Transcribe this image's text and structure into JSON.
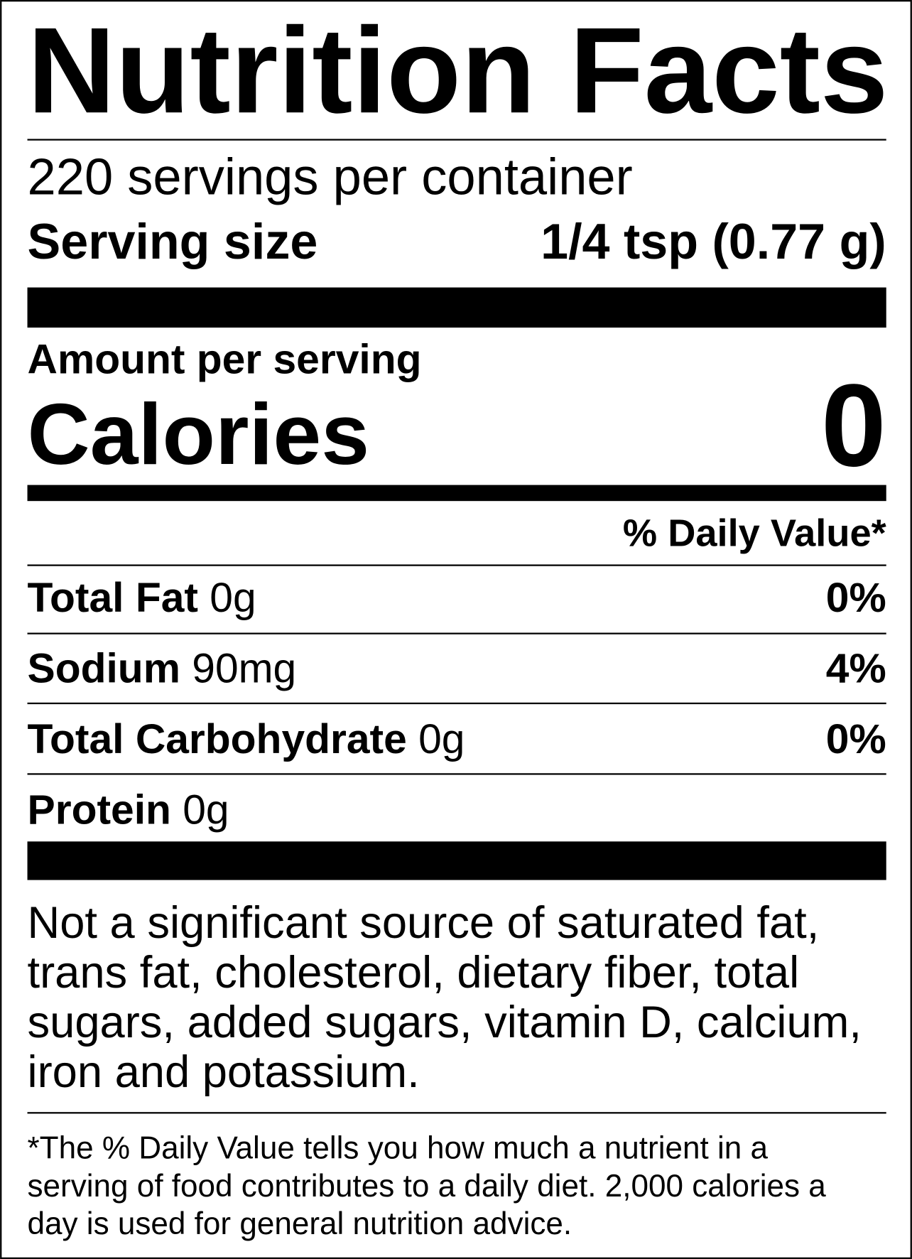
{
  "title": "Nutrition Facts",
  "servings_per_container": "220 servings per container",
  "serving_size": {
    "label": "Serving size",
    "value": "1/4 tsp (0.77 g)"
  },
  "amount_per_serving": "Amount per serving",
  "calories": {
    "label": "Calories",
    "value": "0"
  },
  "daily_value_header": "% Daily Value*",
  "nutrients": [
    {
      "name": "Total Fat",
      "amount": "0g",
      "daily_value": "0%"
    },
    {
      "name": "Sodium",
      "amount": "90mg",
      "daily_value": "4%"
    },
    {
      "name": "Total Carbohydrate",
      "amount": "0g",
      "daily_value": "0%"
    },
    {
      "name": "Protein",
      "amount": "0g"
    }
  ],
  "note": [
    "Not a significant source of saturated fat,",
    "trans fat, cholesterol, dietary fiber, total",
    "sugars, added sugars, vitamin D, calcium,",
    "iron and potassium."
  ],
  "footnote": [
    "*The % Daily Value tells you how much a nutrient in a",
    "serving of food contributes to a daily diet. 2,000 calories a",
    "day is used for general nutrition advice."
  ]
}
